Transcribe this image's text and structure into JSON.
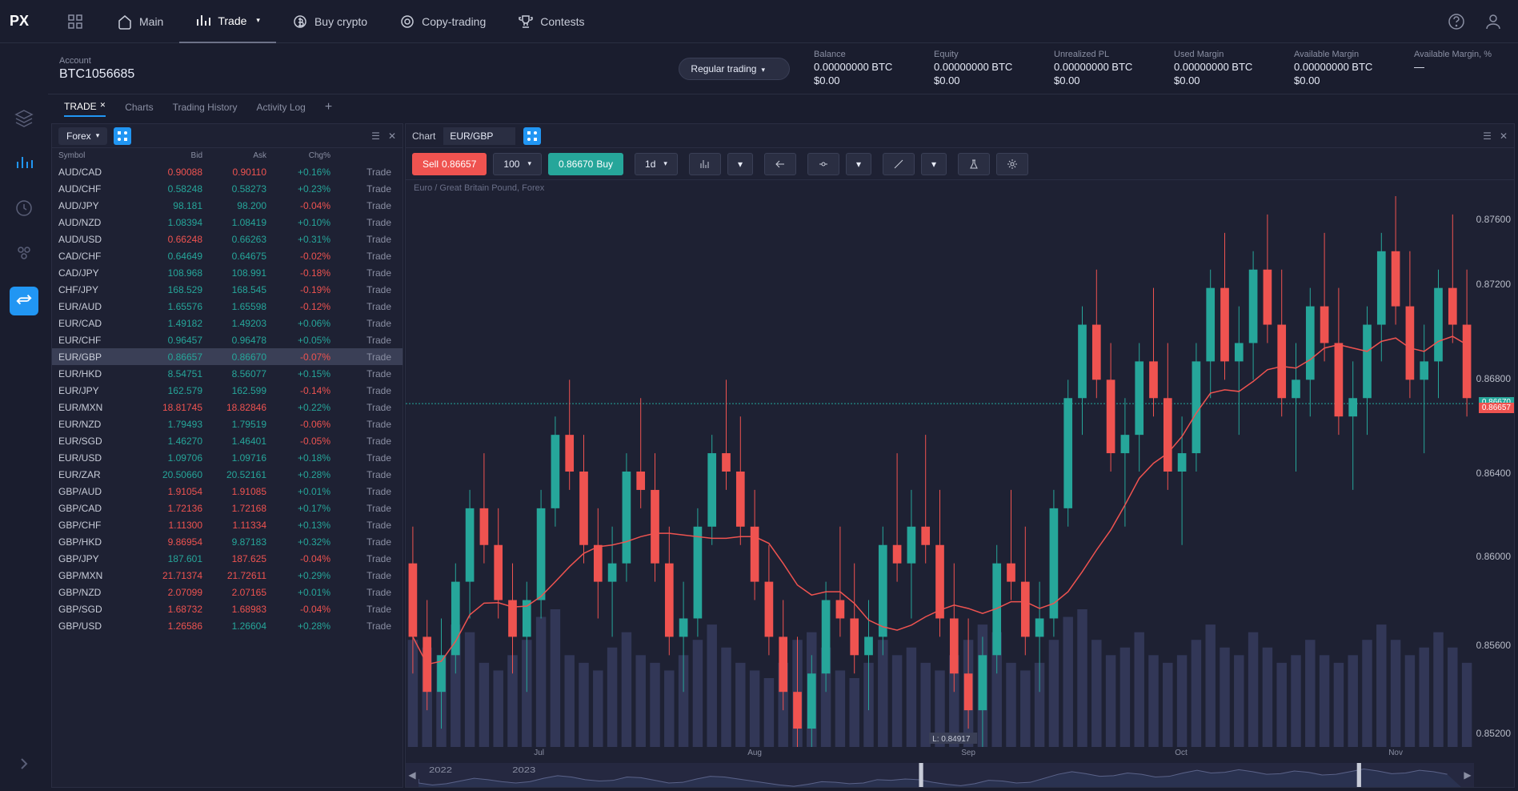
{
  "nav": {
    "logo": "PX",
    "items": [
      {
        "label": "Main",
        "icon": "home"
      },
      {
        "label": "Trade",
        "icon": "chart",
        "active": true,
        "dropdown": true
      },
      {
        "label": "Buy crypto",
        "icon": "coin"
      },
      {
        "label": "Copy-trading",
        "icon": "copy"
      },
      {
        "label": "Contests",
        "icon": "trophy"
      }
    ]
  },
  "account": {
    "label": "Account",
    "id": "BTC1056685",
    "mode": "Regular trading",
    "stats": [
      {
        "label": "Balance",
        "v1": "0.00000000 BTC",
        "v2": "$0.00"
      },
      {
        "label": "Equity",
        "v1": "0.00000000 BTC",
        "v2": "$0.00"
      },
      {
        "label": "Unrealized PL",
        "v1": "0.00000000 BTC",
        "v2": "$0.00"
      },
      {
        "label": "Used Margin",
        "v1": "0.00000000 BTC",
        "v2": "$0.00"
      },
      {
        "label": "Available Margin",
        "v1": "0.00000000 BTC",
        "v2": "$0.00"
      },
      {
        "label": "Available Margin, %",
        "v1": "—",
        "v2": ""
      }
    ]
  },
  "subtabs": [
    {
      "label": "TRADE",
      "active": true,
      "closable": true
    },
    {
      "label": "Charts"
    },
    {
      "label": "Trading History"
    },
    {
      "label": "Activity Log"
    }
  ],
  "watchlist": {
    "category": "Forex",
    "headers": {
      "sym": "Symbol",
      "bid": "Bid",
      "ask": "Ask",
      "chg": "Chg%"
    },
    "trade_label": "Trade",
    "rows": [
      {
        "sym": "AUD/CAD",
        "bid": "0.90088",
        "ask": "0.90110",
        "chg": "+0.16%",
        "bd": "down",
        "ad": "down",
        "cd": "up"
      },
      {
        "sym": "AUD/CHF",
        "bid": "0.58248",
        "ask": "0.58273",
        "chg": "+0.23%",
        "bd": "up",
        "ad": "up",
        "cd": "up"
      },
      {
        "sym": "AUD/JPY",
        "bid": "98.181",
        "ask": "98.200",
        "chg": "-0.04%",
        "bd": "up",
        "ad": "up",
        "cd": "down"
      },
      {
        "sym": "AUD/NZD",
        "bid": "1.08394",
        "ask": "1.08419",
        "chg": "+0.10%",
        "bd": "up",
        "ad": "up",
        "cd": "up"
      },
      {
        "sym": "AUD/USD",
        "bid": "0.66248",
        "ask": "0.66263",
        "chg": "+0.31%",
        "bd": "down",
        "ad": "up",
        "cd": "up"
      },
      {
        "sym": "CAD/CHF",
        "bid": "0.64649",
        "ask": "0.64675",
        "chg": "-0.02%",
        "bd": "up",
        "ad": "up",
        "cd": "down"
      },
      {
        "sym": "CAD/JPY",
        "bid": "108.968",
        "ask": "108.991",
        "chg": "-0.18%",
        "bd": "up",
        "ad": "up",
        "cd": "down"
      },
      {
        "sym": "CHF/JPY",
        "bid": "168.529",
        "ask": "168.545",
        "chg": "-0.19%",
        "bd": "up",
        "ad": "up",
        "cd": "down"
      },
      {
        "sym": "EUR/AUD",
        "bid": "1.65576",
        "ask": "1.65598",
        "chg": "-0.12%",
        "bd": "up",
        "ad": "up",
        "cd": "down"
      },
      {
        "sym": "EUR/CAD",
        "bid": "1.49182",
        "ask": "1.49203",
        "chg": "+0.06%",
        "bd": "up",
        "ad": "up",
        "cd": "up"
      },
      {
        "sym": "EUR/CHF",
        "bid": "0.96457",
        "ask": "0.96478",
        "chg": "+0.05%",
        "bd": "up",
        "ad": "up",
        "cd": "up"
      },
      {
        "sym": "EUR/GBP",
        "bid": "0.86657",
        "ask": "0.86670",
        "chg": "-0.07%",
        "bd": "up",
        "ad": "up",
        "cd": "down",
        "selected": true
      },
      {
        "sym": "EUR/HKD",
        "bid": "8.54751",
        "ask": "8.56077",
        "chg": "+0.15%",
        "bd": "up",
        "ad": "up",
        "cd": "up"
      },
      {
        "sym": "EUR/JPY",
        "bid": "162.579",
        "ask": "162.599",
        "chg": "-0.14%",
        "bd": "up",
        "ad": "up",
        "cd": "down"
      },
      {
        "sym": "EUR/MXN",
        "bid": "18.81745",
        "ask": "18.82846",
        "chg": "+0.22%",
        "bd": "down",
        "ad": "down",
        "cd": "up"
      },
      {
        "sym": "EUR/NZD",
        "bid": "1.79493",
        "ask": "1.79519",
        "chg": "-0.06%",
        "bd": "up",
        "ad": "up",
        "cd": "down"
      },
      {
        "sym": "EUR/SGD",
        "bid": "1.46270",
        "ask": "1.46401",
        "chg": "-0.05%",
        "bd": "up",
        "ad": "up",
        "cd": "down"
      },
      {
        "sym": "EUR/USD",
        "bid": "1.09706",
        "ask": "1.09716",
        "chg": "+0.18%",
        "bd": "up",
        "ad": "up",
        "cd": "up"
      },
      {
        "sym": "EUR/ZAR",
        "bid": "20.50660",
        "ask": "20.52161",
        "chg": "+0.28%",
        "bd": "up",
        "ad": "up",
        "cd": "up"
      },
      {
        "sym": "GBP/AUD",
        "bid": "1.91054",
        "ask": "1.91085",
        "chg": "+0.01%",
        "bd": "down",
        "ad": "down",
        "cd": "up"
      },
      {
        "sym": "GBP/CAD",
        "bid": "1.72136",
        "ask": "1.72168",
        "chg": "+0.17%",
        "bd": "down",
        "ad": "down",
        "cd": "up"
      },
      {
        "sym": "GBP/CHF",
        "bid": "1.11300",
        "ask": "1.11334",
        "chg": "+0.13%",
        "bd": "down",
        "ad": "down",
        "cd": "up"
      },
      {
        "sym": "GBP/HKD",
        "bid": "9.86954",
        "ask": "9.87183",
        "chg": "+0.32%",
        "bd": "down",
        "ad": "up",
        "cd": "up"
      },
      {
        "sym": "GBP/JPY",
        "bid": "187.601",
        "ask": "187.625",
        "chg": "-0.04%",
        "bd": "up",
        "ad": "down",
        "cd": "down"
      },
      {
        "sym": "GBP/MXN",
        "bid": "21.71374",
        "ask": "21.72611",
        "chg": "+0.29%",
        "bd": "down",
        "ad": "down",
        "cd": "up"
      },
      {
        "sym": "GBP/NZD",
        "bid": "2.07099",
        "ask": "2.07165",
        "chg": "+0.01%",
        "bd": "down",
        "ad": "down",
        "cd": "up"
      },
      {
        "sym": "GBP/SGD",
        "bid": "1.68732",
        "ask": "1.68983",
        "chg": "-0.04%",
        "bd": "down",
        "ad": "down",
        "cd": "down"
      },
      {
        "sym": "GBP/USD",
        "bid": "1.26586",
        "ask": "1.26604",
        "chg": "+0.28%",
        "bd": "down",
        "ad": "up",
        "cd": "up"
      }
    ]
  },
  "chart": {
    "title": "Chart",
    "pair": "EUR/GBP",
    "subtitle": "Euro / Great Britain Pound, Forex",
    "sell_label": "Sell",
    "sell_price": "0.86657",
    "qty": "100",
    "buy_price": "0.86670",
    "buy_label": "Buy",
    "interval": "1d",
    "low_label": "L: 0.84917",
    "y_ticks": [
      {
        "label": "0.87600",
        "pct": 3
      },
      {
        "label": "0.87200",
        "pct": 14
      },
      {
        "label": "0.86800",
        "pct": 30
      },
      {
        "label": "0.86670",
        "pct": 34,
        "tag": "buy"
      },
      {
        "label": "0.86657",
        "pct": 35,
        "tag": "sell"
      },
      {
        "label": "0.86400",
        "pct": 46
      },
      {
        "label": "0.86000",
        "pct": 60
      },
      {
        "label": "0.85600",
        "pct": 75
      },
      {
        "label": "0.85200",
        "pct": 90
      }
    ],
    "x_ticks": [
      {
        "label": "Jul",
        "pct": 12
      },
      {
        "label": "Aug",
        "pct": 32
      },
      {
        "label": "Sep",
        "pct": 52
      },
      {
        "label": "Oct",
        "pct": 72
      },
      {
        "label": "Nov",
        "pct": 92
      }
    ],
    "mini_years": [
      "2022",
      "2023"
    ],
    "colors": {
      "bg": "#1e2133",
      "up": "#26a69a",
      "down": "#ef5350",
      "ma": "#ef5350",
      "vol": "#3a4266",
      "grid": "#2a2e42"
    },
    "ylim": [
      0.848,
      0.878
    ],
    "candles": [
      {
        "o": 0.858,
        "h": 0.86,
        "l": 0.852,
        "c": 0.854,
        "v": 70
      },
      {
        "o": 0.854,
        "h": 0.856,
        "l": 0.85,
        "c": 0.851,
        "v": 65
      },
      {
        "o": 0.851,
        "h": 0.855,
        "l": 0.849,
        "c": 0.853,
        "v": 60
      },
      {
        "o": 0.853,
        "h": 0.858,
        "l": 0.852,
        "c": 0.857,
        "v": 80
      },
      {
        "o": 0.857,
        "h": 0.862,
        "l": 0.855,
        "c": 0.861,
        "v": 75
      },
      {
        "o": 0.861,
        "h": 0.864,
        "l": 0.858,
        "c": 0.859,
        "v": 55
      },
      {
        "o": 0.859,
        "h": 0.861,
        "l": 0.855,
        "c": 0.856,
        "v": 50
      },
      {
        "o": 0.856,
        "h": 0.858,
        "l": 0.852,
        "c": 0.854,
        "v": 60
      },
      {
        "o": 0.854,
        "h": 0.857,
        "l": 0.851,
        "c": 0.856,
        "v": 70
      },
      {
        "o": 0.856,
        "h": 0.862,
        "l": 0.855,
        "c": 0.861,
        "v": 85
      },
      {
        "o": 0.861,
        "h": 0.866,
        "l": 0.86,
        "c": 0.865,
        "v": 90
      },
      {
        "o": 0.865,
        "h": 0.868,
        "l": 0.862,
        "c": 0.863,
        "v": 60
      },
      {
        "o": 0.863,
        "h": 0.865,
        "l": 0.858,
        "c": 0.859,
        "v": 55
      },
      {
        "o": 0.859,
        "h": 0.861,
        "l": 0.855,
        "c": 0.857,
        "v": 50
      },
      {
        "o": 0.857,
        "h": 0.86,
        "l": 0.854,
        "c": 0.858,
        "v": 65
      },
      {
        "o": 0.858,
        "h": 0.864,
        "l": 0.857,
        "c": 0.863,
        "v": 75
      },
      {
        "o": 0.863,
        "h": 0.867,
        "l": 0.861,
        "c": 0.862,
        "v": 60
      },
      {
        "o": 0.862,
        "h": 0.864,
        "l": 0.857,
        "c": 0.858,
        "v": 55
      },
      {
        "o": 0.858,
        "h": 0.86,
        "l": 0.853,
        "c": 0.854,
        "v": 50
      },
      {
        "o": 0.854,
        "h": 0.857,
        "l": 0.851,
        "c": 0.855,
        "v": 60
      },
      {
        "o": 0.855,
        "h": 0.861,
        "l": 0.854,
        "c": 0.86,
        "v": 70
      },
      {
        "o": 0.86,
        "h": 0.865,
        "l": 0.859,
        "c": 0.864,
        "v": 80
      },
      {
        "o": 0.864,
        "h": 0.868,
        "l": 0.862,
        "c": 0.863,
        "v": 65
      },
      {
        "o": 0.863,
        "h": 0.866,
        "l": 0.859,
        "c": 0.86,
        "v": 55
      },
      {
        "o": 0.86,
        "h": 0.862,
        "l": 0.856,
        "c": 0.857,
        "v": 50
      },
      {
        "o": 0.857,
        "h": 0.859,
        "l": 0.853,
        "c": 0.854,
        "v": 45
      },
      {
        "o": 0.854,
        "h": 0.856,
        "l": 0.85,
        "c": 0.851,
        "v": 55
      },
      {
        "o": 0.851,
        "h": 0.854,
        "l": 0.848,
        "c": 0.849,
        "v": 70
      },
      {
        "o": 0.849,
        "h": 0.853,
        "l": 0.848,
        "c": 0.852,
        "v": 75
      },
      {
        "o": 0.852,
        "h": 0.857,
        "l": 0.851,
        "c": 0.856,
        "v": 65
      },
      {
        "o": 0.856,
        "h": 0.86,
        "l": 0.854,
        "c": 0.855,
        "v": 50
      },
      {
        "o": 0.855,
        "h": 0.858,
        "l": 0.852,
        "c": 0.853,
        "v": 45
      },
      {
        "o": 0.853,
        "h": 0.856,
        "l": 0.85,
        "c": 0.854,
        "v": 55
      },
      {
        "o": 0.854,
        "h": 0.86,
        "l": 0.853,
        "c": 0.859,
        "v": 70
      },
      {
        "o": 0.859,
        "h": 0.864,
        "l": 0.857,
        "c": 0.858,
        "v": 60
      },
      {
        "o": 0.858,
        "h": 0.862,
        "l": 0.855,
        "c": 0.86,
        "v": 65
      },
      {
        "o": 0.86,
        "h": 0.865,
        "l": 0.858,
        "c": 0.859,
        "v": 55
      },
      {
        "o": 0.859,
        "h": 0.862,
        "l": 0.854,
        "c": 0.855,
        "v": 50
      },
      {
        "o": 0.855,
        "h": 0.858,
        "l": 0.851,
        "c": 0.852,
        "v": 60
      },
      {
        "o": 0.852,
        "h": 0.855,
        "l": 0.849,
        "c": 0.85,
        "v": 70
      },
      {
        "o": 0.85,
        "h": 0.854,
        "l": 0.848,
        "c": 0.853,
        "v": 80
      },
      {
        "o": 0.853,
        "h": 0.859,
        "l": 0.852,
        "c": 0.858,
        "v": 75
      },
      {
        "o": 0.858,
        "h": 0.862,
        "l": 0.856,
        "c": 0.857,
        "v": 55
      },
      {
        "o": 0.857,
        "h": 0.86,
        "l": 0.853,
        "c": 0.854,
        "v": 50
      },
      {
        "o": 0.854,
        "h": 0.857,
        "l": 0.851,
        "c": 0.855,
        "v": 55
      },
      {
        "o": 0.855,
        "h": 0.862,
        "l": 0.854,
        "c": 0.861,
        "v": 70
      },
      {
        "o": 0.861,
        "h": 0.868,
        "l": 0.86,
        "c": 0.867,
        "v": 85
      },
      {
        "o": 0.867,
        "h": 0.872,
        "l": 0.865,
        "c": 0.871,
        "v": 90
      },
      {
        "o": 0.871,
        "h": 0.874,
        "l": 0.867,
        "c": 0.868,
        "v": 70
      },
      {
        "o": 0.868,
        "h": 0.87,
        "l": 0.863,
        "c": 0.864,
        "v": 60
      },
      {
        "o": 0.864,
        "h": 0.867,
        "l": 0.86,
        "c": 0.865,
        "v": 65
      },
      {
        "o": 0.865,
        "h": 0.87,
        "l": 0.863,
        "c": 0.869,
        "v": 75
      },
      {
        "o": 0.869,
        "h": 0.873,
        "l": 0.866,
        "c": 0.867,
        "v": 60
      },
      {
        "o": 0.867,
        "h": 0.87,
        "l": 0.862,
        "c": 0.863,
        "v": 55
      },
      {
        "o": 0.863,
        "h": 0.866,
        "l": 0.859,
        "c": 0.864,
        "v": 60
      },
      {
        "o": 0.864,
        "h": 0.87,
        "l": 0.863,
        "c": 0.869,
        "v": 70
      },
      {
        "o": 0.869,
        "h": 0.874,
        "l": 0.867,
        "c": 0.873,
        "v": 80
      },
      {
        "o": 0.873,
        "h": 0.876,
        "l": 0.868,
        "c": 0.869,
        "v": 65
      },
      {
        "o": 0.869,
        "h": 0.872,
        "l": 0.865,
        "c": 0.87,
        "v": 60
      },
      {
        "o": 0.87,
        "h": 0.875,
        "l": 0.868,
        "c": 0.874,
        "v": 75
      },
      {
        "o": 0.874,
        "h": 0.877,
        "l": 0.87,
        "c": 0.871,
        "v": 65
      },
      {
        "o": 0.871,
        "h": 0.874,
        "l": 0.866,
        "c": 0.867,
        "v": 55
      },
      {
        "o": 0.867,
        "h": 0.87,
        "l": 0.863,
        "c": 0.868,
        "v": 60
      },
      {
        "o": 0.868,
        "h": 0.873,
        "l": 0.866,
        "c": 0.872,
        "v": 70
      },
      {
        "o": 0.872,
        "h": 0.876,
        "l": 0.869,
        "c": 0.87,
        "v": 60
      },
      {
        "o": 0.87,
        "h": 0.873,
        "l": 0.865,
        "c": 0.866,
        "v": 55
      },
      {
        "o": 0.866,
        "h": 0.869,
        "l": 0.862,
        "c": 0.867,
        "v": 60
      },
      {
        "o": 0.867,
        "h": 0.872,
        "l": 0.865,
        "c": 0.871,
        "v": 70
      },
      {
        "o": 0.871,
        "h": 0.876,
        "l": 0.869,
        "c": 0.875,
        "v": 80
      },
      {
        "o": 0.875,
        "h": 0.878,
        "l": 0.871,
        "c": 0.872,
        "v": 70
      },
      {
        "o": 0.872,
        "h": 0.875,
        "l": 0.867,
        "c": 0.868,
        "v": 60
      },
      {
        "o": 0.868,
        "h": 0.871,
        "l": 0.864,
        "c": 0.869,
        "v": 65
      },
      {
        "o": 0.869,
        "h": 0.874,
        "l": 0.867,
        "c": 0.873,
        "v": 75
      },
      {
        "o": 0.873,
        "h": 0.877,
        "l": 0.87,
        "c": 0.871,
        "v": 65
      },
      {
        "o": 0.871,
        "h": 0.874,
        "l": 0.866,
        "c": 0.867,
        "v": 55
      }
    ]
  }
}
